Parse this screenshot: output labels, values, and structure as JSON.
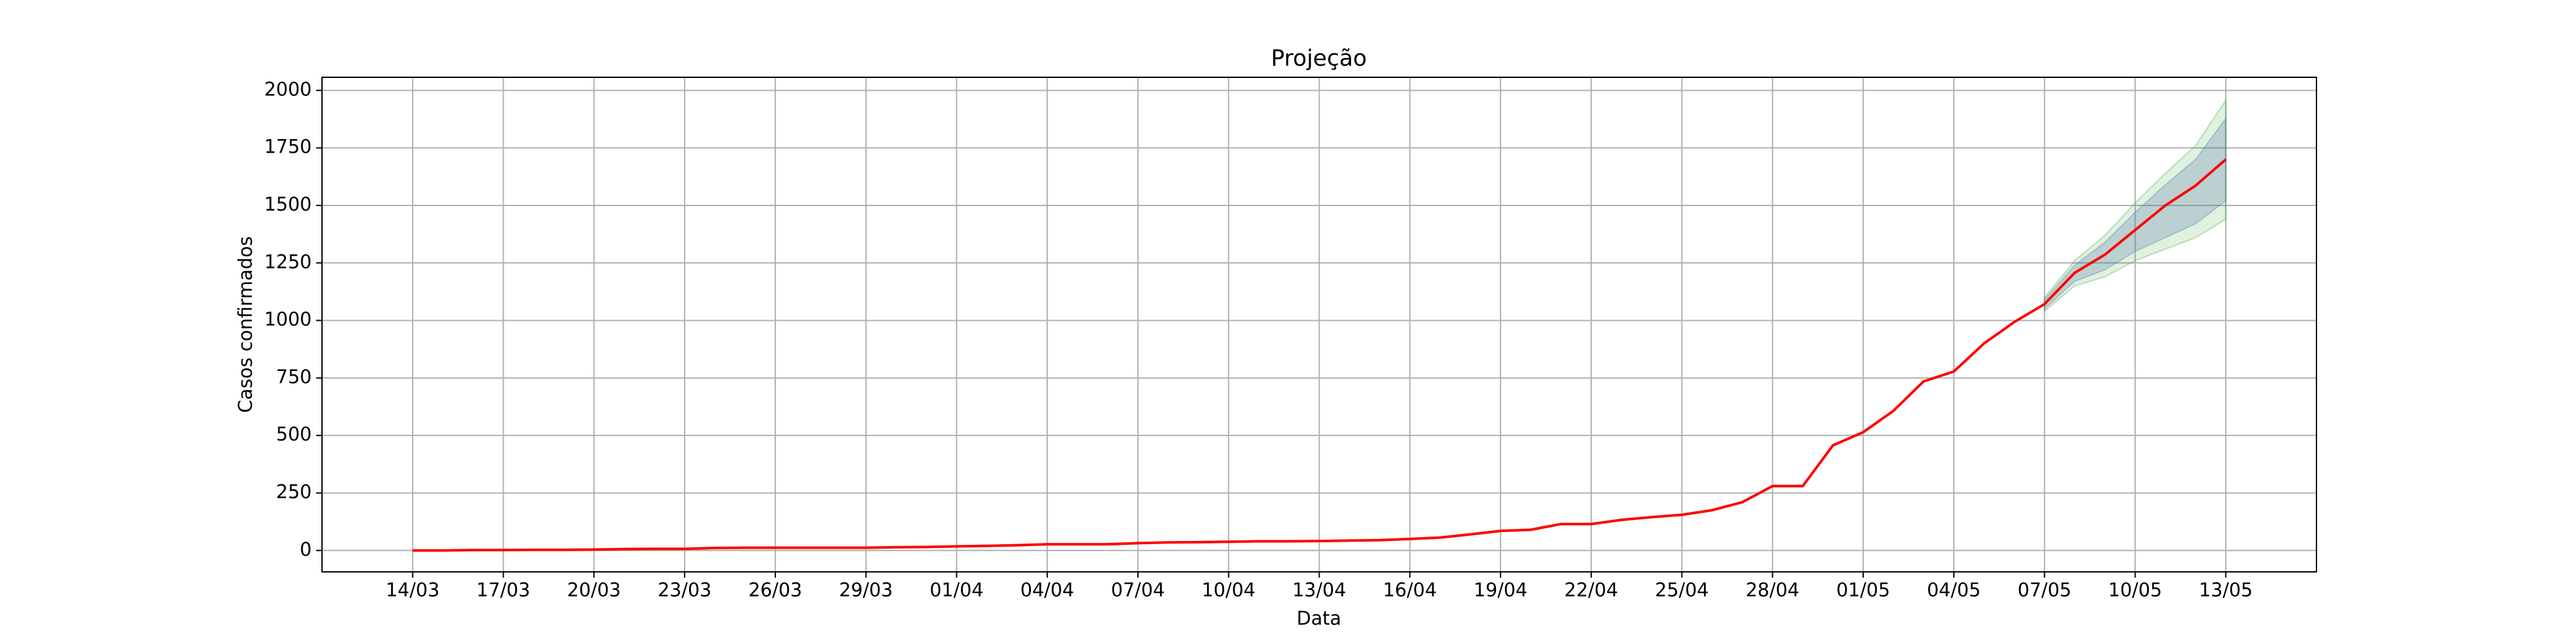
{
  "chart_data": {
    "type": "line",
    "title": "Projeção",
    "xlabel": "Data",
    "ylabel": "Casos confirmados",
    "categories": [
      "14/03",
      null,
      null,
      "17/03",
      null,
      null,
      "20/03",
      null,
      null,
      "23/03",
      null,
      null,
      "26/03",
      null,
      null,
      "29/03",
      null,
      null,
      "01/04",
      null,
      null,
      "04/04",
      null,
      null,
      "07/04",
      null,
      null,
      "10/04",
      null,
      null,
      "13/04",
      null,
      null,
      "16/04",
      null,
      null,
      "19/04",
      null,
      null,
      "22/04",
      null,
      null,
      "25/04",
      null,
      null,
      "28/04",
      null,
      null,
      "01/05",
      null,
      null,
      "04/05",
      null,
      null,
      "07/05",
      null,
      null,
      "10/05",
      null,
      null,
      "13/05"
    ],
    "series": [
      {
        "color": "#ff0000",
        "values": [
          0,
          0,
          2,
          2,
          3,
          3,
          4,
          6,
          7,
          7,
          11,
          12,
          12,
          12,
          12,
          12,
          14,
          15,
          18,
          20,
          23,
          27,
          27,
          27,
          32,
          35,
          36,
          38,
          40,
          40,
          41,
          43,
          45,
          50,
          56,
          70,
          85,
          90,
          115,
          115,
          133,
          145,
          155,
          175,
          210,
          280,
          280,
          457,
          514,
          607,
          735,
          778,
          900,
          993,
          1071,
          1207,
          1286,
          1393,
          1500,
          1586,
          1700
        ]
      }
    ],
    "bands": [
      {
        "color": "#2ca02c",
        "lower": [
          null,
          null,
          null,
          null,
          null,
          null,
          null,
          null,
          null,
          null,
          null,
          null,
          null,
          null,
          null,
          null,
          null,
          null,
          null,
          null,
          null,
          null,
          null,
          null,
          null,
          null,
          null,
          null,
          null,
          null,
          null,
          null,
          null,
          null,
          null,
          null,
          null,
          null,
          null,
          null,
          null,
          null,
          null,
          null,
          null,
          null,
          null,
          null,
          null,
          null,
          null,
          null,
          null,
          null,
          1040,
          1150,
          1190,
          1260,
          1310,
          1360,
          1440
        ],
        "upper": [
          null,
          null,
          null,
          null,
          null,
          null,
          null,
          null,
          null,
          null,
          null,
          null,
          null,
          null,
          null,
          null,
          null,
          null,
          null,
          null,
          null,
          null,
          null,
          null,
          null,
          null,
          null,
          null,
          null,
          null,
          null,
          null,
          null,
          null,
          null,
          null,
          null,
          null,
          null,
          null,
          null,
          null,
          null,
          null,
          null,
          null,
          null,
          null,
          null,
          null,
          null,
          null,
          null,
          null,
          1100,
          1260,
          1370,
          1510,
          1640,
          1760,
          1957
        ]
      },
      {
        "color": "#4a6fa5",
        "lower": [
          null,
          null,
          null,
          null,
          null,
          null,
          null,
          null,
          null,
          null,
          null,
          null,
          null,
          null,
          null,
          null,
          null,
          null,
          null,
          null,
          null,
          null,
          null,
          null,
          null,
          null,
          null,
          null,
          null,
          null,
          null,
          null,
          null,
          null,
          null,
          null,
          null,
          null,
          null,
          null,
          null,
          null,
          null,
          null,
          null,
          null,
          null,
          null,
          null,
          null,
          null,
          null,
          null,
          null,
          1050,
          1170,
          1220,
          1300,
          1360,
          1420,
          1521
        ],
        "upper": [
          null,
          null,
          null,
          null,
          null,
          null,
          null,
          null,
          null,
          null,
          null,
          null,
          null,
          null,
          null,
          null,
          null,
          null,
          null,
          null,
          null,
          null,
          null,
          null,
          null,
          null,
          null,
          null,
          null,
          null,
          null,
          null,
          null,
          null,
          null,
          null,
          null,
          null,
          null,
          null,
          null,
          null,
          null,
          null,
          null,
          null,
          null,
          null,
          null,
          null,
          null,
          null,
          null,
          null,
          1090,
          1240,
          1340,
          1470,
          1590,
          1700,
          1878
        ]
      }
    ],
    "ylim": [
      -93,
      2057
    ],
    "yticks": [
      0,
      250,
      500,
      750,
      1000,
      1250,
      1500,
      1750,
      2000
    ],
    "grid": true
  }
}
